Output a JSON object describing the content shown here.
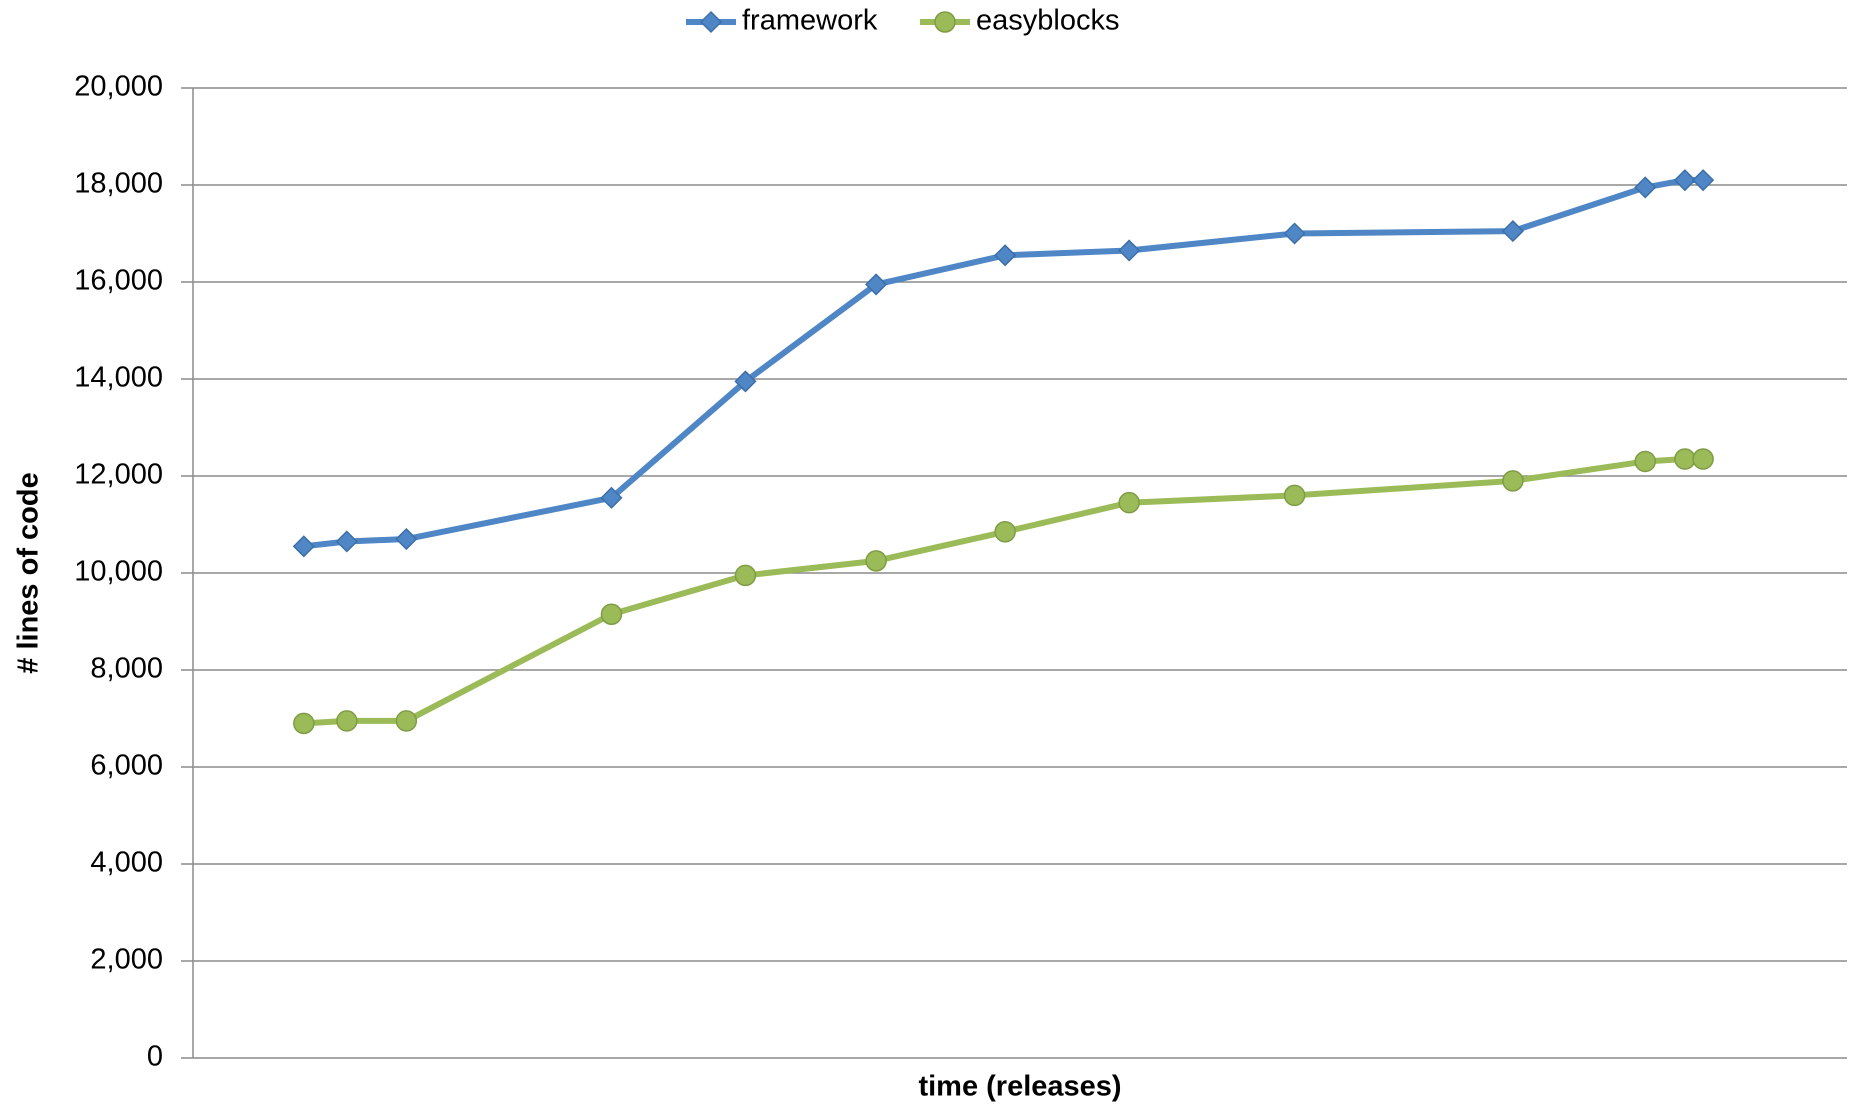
{
  "chart_data": {
    "type": "line",
    "x_label": "time (releases)",
    "y_label": "# lines of code",
    "x": [
      6.7,
      9.3,
      12.9,
      25.3,
      33.4,
      41.3,
      49.1,
      56.6,
      66.6,
      79.8,
      87.8,
      90.2,
      91.3
    ],
    "xlim": [
      0,
      100
    ],
    "series": [
      {
        "name": "framework",
        "color": "#4f86c6",
        "marker": "diamond",
        "values": [
          10550,
          10650,
          10700,
          11550,
          13950,
          15950,
          16550,
          16650,
          17000,
          17050,
          17950,
          18100,
          18100
        ]
      },
      {
        "name": "easyblocks",
        "color": "#9bbb59",
        "marker": "circle",
        "values": [
          6900,
          6950,
          6950,
          9150,
          9950,
          10250,
          10850,
          11450,
          11600,
          11900,
          12300,
          12350,
          12350
        ]
      }
    ],
    "ylim": [
      0,
      20000
    ],
    "yticks": [
      0,
      {
        "value": 2000,
        "label": "2,000"
      },
      {
        "value": 4000,
        "label": "4,000"
      },
      {
        "value": 6000,
        "label": "6,000"
      },
      {
        "value": 8000,
        "label": "8,000"
      },
      {
        "value": 10000,
        "label": "10,000"
      },
      {
        "value": 12000,
        "label": "12,000"
      },
      {
        "value": 14000,
        "label": "14,000"
      },
      {
        "value": 16000,
        "label": "16,000"
      },
      {
        "value": 18000,
        "label": "18,000"
      },
      {
        "value": 20000,
        "label": "20,000"
      }
    ],
    "grid": true,
    "legend": "top"
  }
}
